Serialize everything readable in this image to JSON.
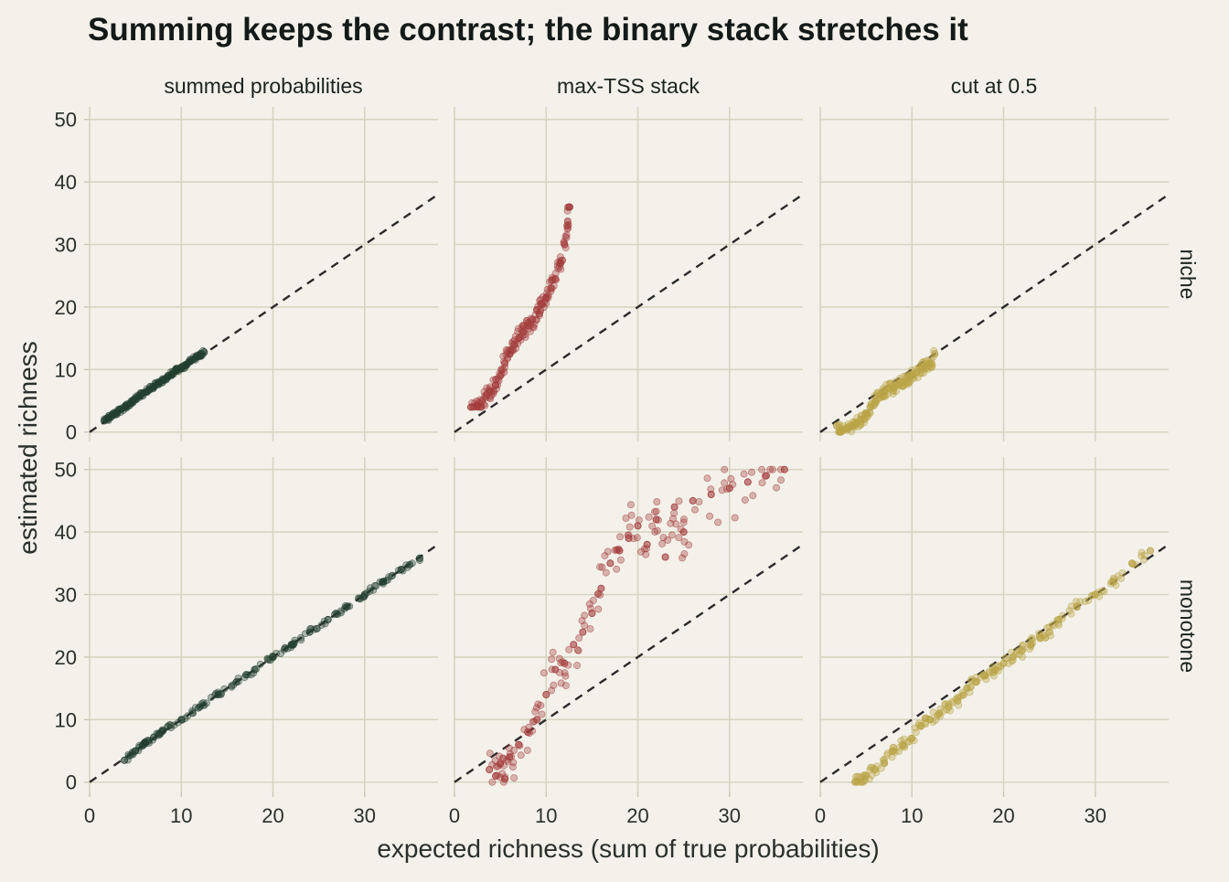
{
  "chart_data": {
    "type": "scatter",
    "title": "Summing keeps the contrast; the binary stack stretches it",
    "xlabel": "expected richness (sum of true probabilities)",
    "ylabel": "estimated richness",
    "xlim": [
      0,
      38
    ],
    "ylim": [
      -1.5,
      52
    ],
    "x_ticks": [
      "0",
      "10",
      "20",
      "30"
    ],
    "y_ticks": [
      "0",
      "10",
      "20",
      "30",
      "40",
      "50"
    ],
    "grid": true,
    "legend": "none",
    "reference_line": "y = x (dashed)",
    "column_facets": [
      "summed probabilities",
      "max-TSS stack",
      "cut at 0.5"
    ],
    "row_facets": [
      "niche",
      "monotone"
    ],
    "colors": {
      "summed probabilities": "#23402f",
      "max-TSS stack": "#a33c3c",
      "cut at 0.5": "#b9a446",
      "background": "#f3f1ea",
      "grid": "#d6d5c0"
    },
    "panels": [
      {
        "row": "niche",
        "col": "summed probabilities",
        "x_range": [
          1.5,
          12.5
        ],
        "y_range": [
          1.5,
          13
        ],
        "points": [
          [
            1.6,
            1.8
          ],
          [
            2,
            2.2
          ],
          [
            2.5,
            2.7
          ],
          [
            3,
            3.2
          ],
          [
            3.5,
            3.7
          ],
          [
            4,
            4.2
          ],
          [
            4.5,
            4.6
          ],
          [
            5,
            5.2
          ],
          [
            5.5,
            5.8
          ],
          [
            6,
            6.3
          ],
          [
            6.5,
            6.8
          ],
          [
            7,
            7.3
          ],
          [
            7.5,
            7.8
          ],
          [
            8,
            8.3
          ],
          [
            8.5,
            8.8
          ],
          [
            9,
            9.3
          ],
          [
            9.5,
            9.8
          ],
          [
            10,
            10.3
          ],
          [
            10.5,
            10.8
          ],
          [
            11,
            11.3
          ],
          [
            11.5,
            11.8
          ],
          [
            12,
            12.3
          ],
          [
            12.5,
            12.8
          ]
        ]
      },
      {
        "row": "niche",
        "col": "max-TSS stack",
        "x_range": [
          1.5,
          12.5
        ],
        "y_range": [
          4,
          36
        ],
        "points": [
          [
            1.8,
            4
          ],
          [
            2.5,
            4.3
          ],
          [
            3,
            5
          ],
          [
            3.5,
            6
          ],
          [
            4,
            6.5
          ],
          [
            4.5,
            7.5
          ],
          [
            5,
            9
          ],
          [
            5.5,
            11
          ],
          [
            6,
            12.5
          ],
          [
            6.5,
            14
          ],
          [
            7,
            15
          ],
          [
            7.5,
            16
          ],
          [
            8,
            17
          ],
          [
            8.5,
            18
          ],
          [
            9,
            19.5
          ],
          [
            9.5,
            20.5
          ],
          [
            10,
            21.5
          ],
          [
            10.5,
            23
          ],
          [
            11,
            24.5
          ],
          [
            11.5,
            27
          ],
          [
            12,
            30
          ],
          [
            12.3,
            33
          ],
          [
            12.5,
            36
          ]
        ]
      },
      {
        "row": "niche",
        "col": "cut at 0.5",
        "x_range": [
          1.5,
          12.5
        ],
        "y_range": [
          0,
          13
        ],
        "points": [
          [
            1.8,
            1
          ],
          [
            2.2,
            0
          ],
          [
            3,
            0.5
          ],
          [
            3.5,
            1
          ],
          [
            4,
            1.5
          ],
          [
            4.5,
            2
          ],
          [
            5,
            3
          ],
          [
            5.5,
            4
          ],
          [
            6,
            5
          ],
          [
            6.5,
            6
          ],
          [
            7,
            6.5
          ],
          [
            7.5,
            7
          ],
          [
            8,
            7
          ],
          [
            8.5,
            7.5
          ],
          [
            9,
            8
          ],
          [
            9.5,
            8.5
          ],
          [
            10,
            9
          ],
          [
            10.5,
            9.5
          ],
          [
            11,
            10
          ],
          [
            11.5,
            10.5
          ],
          [
            12,
            11
          ],
          [
            12.5,
            12.5
          ]
        ]
      },
      {
        "row": "monotone",
        "col": "summed probabilities",
        "x_range": [
          3.5,
          36
        ],
        "y_range": [
          3,
          36
        ],
        "points": [
          [
            3.8,
            3.5
          ],
          [
            5,
            5
          ],
          [
            6,
            6.2
          ],
          [
            7,
            7.2
          ],
          [
            8,
            8.2
          ],
          [
            10,
            10
          ],
          [
            12,
            12
          ],
          [
            14,
            14
          ],
          [
            16,
            16
          ],
          [
            18,
            18
          ],
          [
            20,
            20
          ],
          [
            22,
            22
          ],
          [
            24,
            24
          ],
          [
            26,
            26
          ],
          [
            28,
            28
          ],
          [
            30,
            30
          ],
          [
            32,
            32
          ],
          [
            34,
            34
          ],
          [
            36,
            35.8
          ]
        ]
      },
      {
        "row": "monotone",
        "col": "max-TSS stack",
        "x_range": [
          3.5,
          36
        ],
        "y_range": [
          0,
          50
        ],
        "points": [
          [
            3.8,
            2
          ],
          [
            4.5,
            1
          ],
          [
            5,
            3
          ],
          [
            5.5,
            0.5
          ],
          [
            6,
            4
          ],
          [
            7,
            6
          ],
          [
            8,
            8
          ],
          [
            9,
            10
          ],
          [
            10,
            14
          ],
          [
            11,
            18
          ],
          [
            12,
            19
          ],
          [
            13,
            22
          ],
          [
            14,
            24
          ],
          [
            15,
            27
          ],
          [
            16,
            31
          ],
          [
            17,
            35
          ],
          [
            18,
            37
          ],
          [
            19,
            39
          ],
          [
            20,
            41
          ],
          [
            21,
            38
          ],
          [
            22,
            42
          ],
          [
            23,
            36
          ],
          [
            24,
            44
          ],
          [
            25,
            40
          ],
          [
            26,
            45
          ],
          [
            28,
            46
          ],
          [
            30,
            47
          ],
          [
            32,
            48
          ],
          [
            34,
            49
          ],
          [
            36,
            50
          ]
        ]
      },
      {
        "row": "monotone",
        "col": "cut at 0.5",
        "x_range": [
          3.5,
          36
        ],
        "y_range": [
          0,
          37
        ],
        "points": [
          [
            3.8,
            0
          ],
          [
            4.5,
            0
          ],
          [
            5,
            1
          ],
          [
            6,
            2
          ],
          [
            7,
            3
          ],
          [
            8,
            5
          ],
          [
            9,
            6
          ],
          [
            10,
            7
          ],
          [
            11,
            9
          ],
          [
            12,
            10
          ],
          [
            13,
            11
          ],
          [
            14,
            12
          ],
          [
            15,
            13
          ],
          [
            16,
            15
          ],
          [
            17,
            16
          ],
          [
            18,
            17
          ],
          [
            19,
            18
          ],
          [
            20,
            19
          ],
          [
            21,
            20
          ],
          [
            22,
            21
          ],
          [
            23,
            22
          ],
          [
            24,
            23
          ],
          [
            25,
            24
          ],
          [
            26,
            26
          ],
          [
            28,
            28
          ],
          [
            30,
            30
          ],
          [
            32,
            32
          ],
          [
            34,
            35
          ],
          [
            36,
            37
          ]
        ]
      }
    ]
  }
}
